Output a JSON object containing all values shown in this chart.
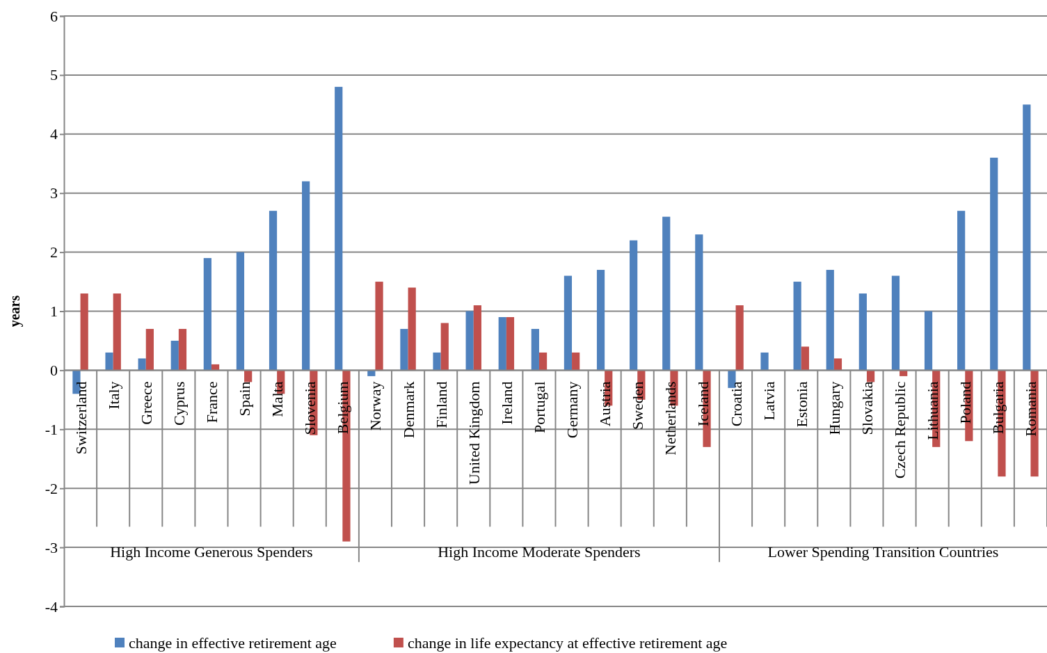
{
  "chart_data": {
    "type": "bar",
    "ylabel": "years",
    "categories": [
      "Switzerland",
      "Italy",
      "Greece",
      "Cyprus",
      "France",
      "Spain",
      "Malta",
      "Slovenia",
      "Belgium",
      "Norway",
      "Denmark",
      "Finland",
      "United Kingdom",
      "Ireland",
      "Portugal",
      "Germany",
      "Austria",
      "Sweden",
      "Netherlands",
      "Iceland",
      "Croatia",
      "Latvia",
      "Estonia",
      "Hungary",
      "Slovakia",
      "Czech Republic",
      "Lithuania",
      "Poland",
      "Bulgaria",
      "Romania"
    ],
    "series": [
      {
        "name": "change in effective retirement age",
        "color": "#4f81bd",
        "values": [
          -0.4,
          0.3,
          0.2,
          0.5,
          1.9,
          2.0,
          2.7,
          3.2,
          4.8,
          -0.1,
          0.7,
          0.3,
          1.0,
          0.9,
          0.7,
          1.6,
          1.7,
          2.2,
          2.6,
          2.3,
          -0.3,
          0.3,
          1.5,
          1.7,
          1.3,
          1.6,
          1.0,
          2.7,
          3.6,
          4.5
        ]
      },
      {
        "name": "change in life expectancy at effective retirement age",
        "color": "#c0504d",
        "values": [
          1.3,
          1.3,
          0.7,
          0.7,
          0.1,
          -0.2,
          -0.4,
          -1.1,
          -2.9,
          1.5,
          1.4,
          0.8,
          1.1,
          0.9,
          0.3,
          0.3,
          -0.6,
          -0.5,
          -0.6,
          -1.3,
          1.1,
          0,
          0.4,
          0.2,
          -0.2,
          -0.1,
          -1.3,
          -1.2,
          -1.8,
          -1.8
        ]
      }
    ],
    "annotations": [
      "High Income Generous Spenders",
      "High Income Moderate Spenders",
      "Lower Spending Transition Countries"
    ],
    "ylim": [
      -4,
      6
    ],
    "yticks": [
      -4,
      -3,
      -2,
      -1,
      0,
      1,
      2,
      3,
      4,
      5,
      6
    ],
    "grid": "y",
    "legend": "bottom"
  }
}
